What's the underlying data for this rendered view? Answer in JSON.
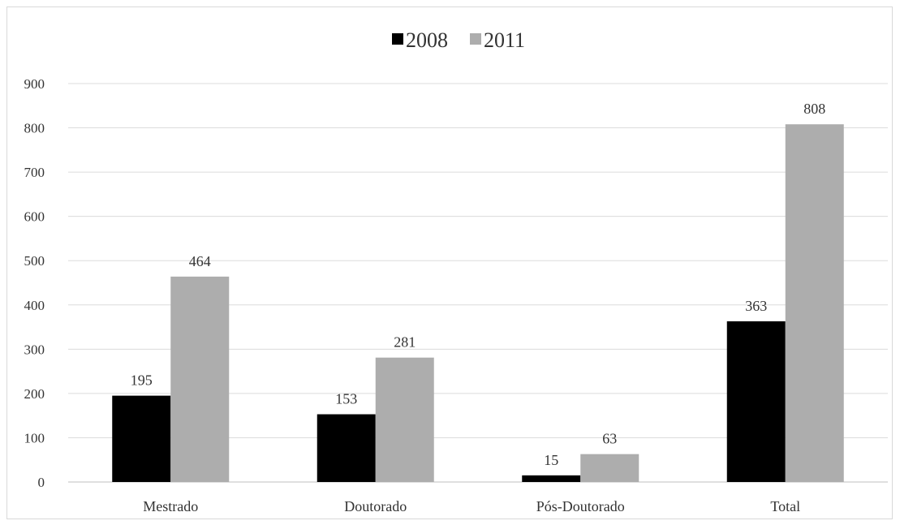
{
  "chart_data": {
    "type": "bar",
    "categories": [
      "Mestrado",
      "Doutorado",
      "Pós-Doutorado",
      "Total"
    ],
    "series": [
      {
        "name": "2008",
        "values": [
          195,
          153,
          15,
          363
        ],
        "color": "#000000"
      },
      {
        "name": "2011",
        "values": [
          464,
          281,
          63,
          808
        ],
        "color": "#adadad"
      }
    ],
    "ylim": [
      0,
      900
    ],
    "yticks": [
      "0",
      "100",
      "200",
      "300",
      "400",
      "500",
      "600",
      "700",
      "800",
      "900"
    ],
    "grid": true,
    "legend_position": "top-center",
    "data_labels": true
  }
}
